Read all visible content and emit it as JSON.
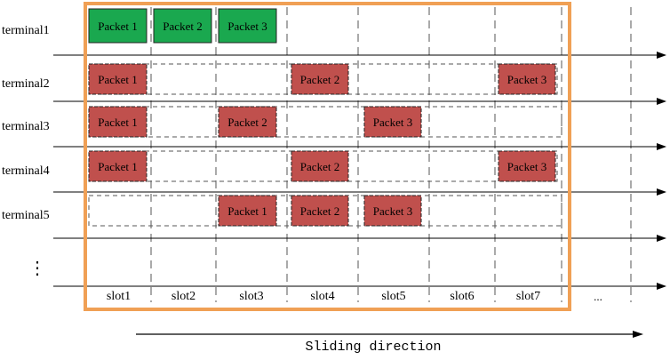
{
  "terminals": [
    {
      "label": "terminal1",
      "style": "success",
      "packets": [
        {
          "label": "Packet 1",
          "slot": 1
        },
        {
          "label": "Packet 2",
          "slot": 2
        },
        {
          "label": "Packet 3",
          "slot": 3
        }
      ]
    },
    {
      "label": "terminal2",
      "style": "pending",
      "packets": [
        {
          "label": "Packet 1",
          "slot": 1
        },
        {
          "label": "Packet 2",
          "slot": 4
        },
        {
          "label": "Packet 3",
          "slot": 7
        }
      ]
    },
    {
      "label": "terminal3",
      "style": "pending",
      "packets": [
        {
          "label": "Packet 1",
          "slot": 1
        },
        {
          "label": "Packet 2",
          "slot": 3
        },
        {
          "label": "Packet 3",
          "slot": 5
        }
      ]
    },
    {
      "label": "terminal4",
      "style": "pending",
      "packets": [
        {
          "label": "Packet 1",
          "slot": 1
        },
        {
          "label": "Packet 2",
          "slot": 4
        },
        {
          "label": "Packet 3",
          "slot": 7
        }
      ]
    },
    {
      "label": "terminal5",
      "style": "pending",
      "packets": [
        {
          "label": "Packet 1",
          "slot": 3
        },
        {
          "label": "Packet 2",
          "slot": 4
        },
        {
          "label": "Packet 3",
          "slot": 5
        }
      ]
    }
  ],
  "continuation_marker": "⋮",
  "slots": [
    "slot1",
    "slot2",
    "slot3",
    "slot4",
    "slot5",
    "slot6",
    "slot7"
  ],
  "slots_more": "...",
  "sliding_direction_label": "Sliding direction",
  "colors": {
    "success_fill": "#1aa84f",
    "pending_fill": "#c0504d",
    "window_border": "#f0a055",
    "line": "#000000",
    "dash": "#555555"
  }
}
